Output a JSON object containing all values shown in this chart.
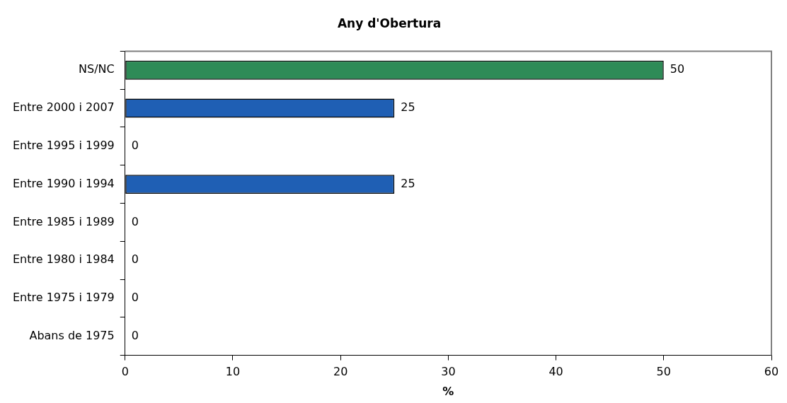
{
  "chart_data": {
    "type": "bar",
    "orientation": "horizontal",
    "title": "Any d'Obertura",
    "xlabel": "%",
    "categories": [
      "NS/NC",
      "Entre 2000 i 2007",
      "Entre 1995 i 1999",
      "Entre 1990 i 1994",
      "Entre 1985 i 1989",
      "Entre 1980 i 1984",
      "Entre 1975 i 1979",
      "Abans de 1975"
    ],
    "values": [
      50,
      25,
      0,
      25,
      0,
      0,
      0,
      0
    ],
    "colors": [
      "#2e8b57",
      "#1f5fb4",
      "#1f5fb4",
      "#1f5fb4",
      "#1f5fb4",
      "#1f5fb4",
      "#1f5fb4",
      "#1f5fb4"
    ],
    "xlim": [
      0,
      60
    ],
    "xticks": [
      0,
      10,
      20,
      30,
      40,
      50,
      60
    ],
    "grid": false,
    "legend": false,
    "data_labels": true
  }
}
